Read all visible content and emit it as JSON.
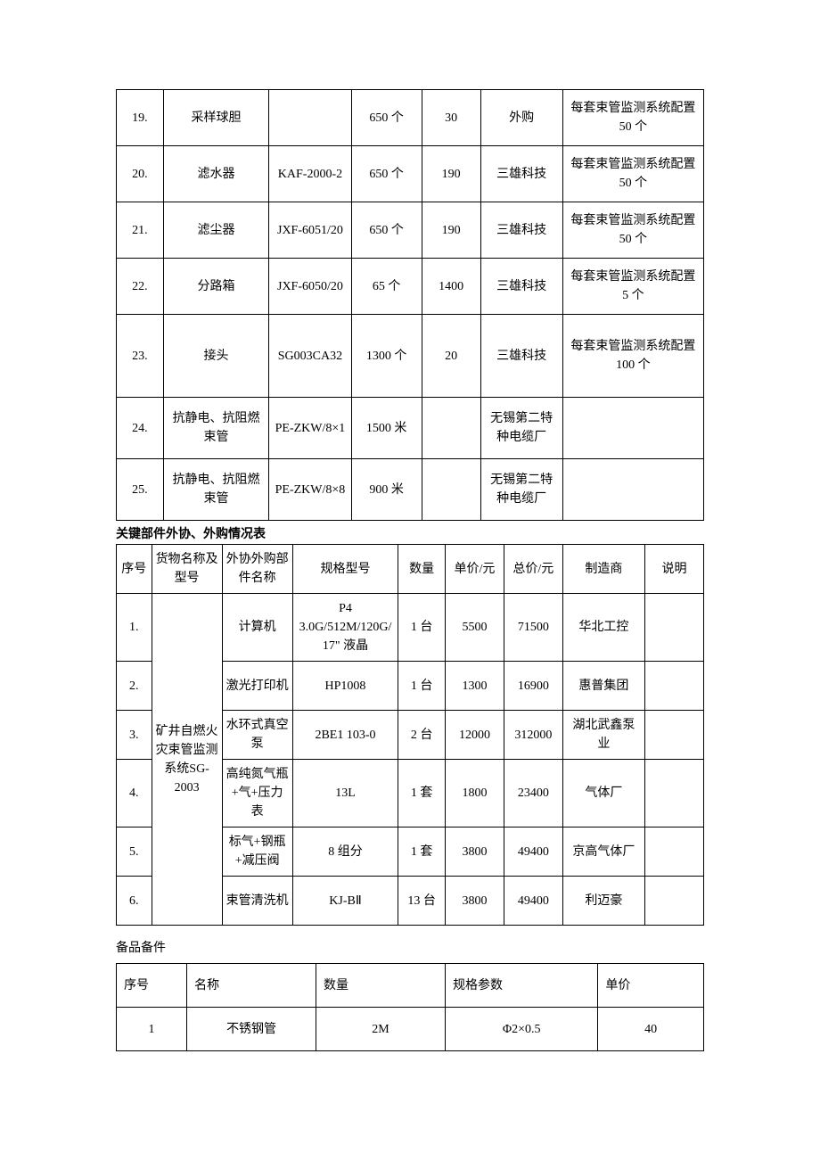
{
  "table1": {
    "rows": [
      {
        "no": "19.",
        "name": "采样球胆",
        "model": "",
        "qty": "650 个",
        "price": "30",
        "maker": "外购",
        "note": "每套束管监测系统配置 50 个"
      },
      {
        "no": "20.",
        "name": "滤水器",
        "model": "KAF-2000-2",
        "qty": "650 个",
        "price": "190",
        "maker": "三雄科技",
        "note": "每套束管监测系统配置 50 个"
      },
      {
        "no": "21.",
        "name": "滤尘器",
        "model": "JXF-6051/20",
        "qty": "650 个",
        "price": "190",
        "maker": "三雄科技",
        "note": "每套束管监测系统配置 50 个"
      },
      {
        "no": "22.",
        "name": "分路箱",
        "model": "JXF-6050/20",
        "qty": "65 个",
        "price": "1400",
        "maker": "三雄科技",
        "note": "每套束管监测系统配置 5 个"
      },
      {
        "no": "23.",
        "name": "接头",
        "model": "SG003CA32",
        "qty": "1300 个",
        "price": "20",
        "maker": "三雄科技",
        "note": "每套束管监测系统配置 100 个"
      },
      {
        "no": "24.",
        "name": "抗静电、抗阻燃束管",
        "model": "PE-ZKW/8×1",
        "qty": "1500 米",
        "price": "",
        "maker": "无锡第二特种电缆厂",
        "note": ""
      },
      {
        "no": "25.",
        "name": "抗静电、抗阻燃束管",
        "model": "PE-ZKW/8×8",
        "qty": "900 米",
        "price": "",
        "maker": "无锡第二特种电缆厂",
        "note": ""
      }
    ]
  },
  "section2_title": "关键部件外协、外购情况表",
  "table2": {
    "headers": [
      "序号",
      "货物名称及型号",
      "外协外购部件名称",
      "规格型号",
      "数量",
      "单价/元",
      "总价/元",
      "制造商",
      "说明"
    ],
    "merged_name": "矿井自燃火灾束管监测系统SG-2003",
    "rows": [
      {
        "no": "1.",
        "part": "计算机",
        "model": "P4 3.0G/512M/120G/17\" 液晶",
        "qty": "1 台",
        "unit": "5500",
        "total": "71500",
        "maker": "华北工控",
        "note": ""
      },
      {
        "no": "2.",
        "part": "激光打印机",
        "model": "HP1008",
        "qty": "1 台",
        "unit": "1300",
        "total": "16900",
        "maker": "惠普集团",
        "note": ""
      },
      {
        "no": "3.",
        "part": "水环式真空泵",
        "model": "2BE1 103-0",
        "qty": "2 台",
        "unit": "12000",
        "total": "312000",
        "maker": "湖北武鑫泵业",
        "note": ""
      },
      {
        "no": "4.",
        "part": "高纯氮气瓶+气+压力表",
        "model": "13L",
        "qty": "1 套",
        "unit": "1800",
        "total": "23400",
        "maker": "气体厂",
        "note": ""
      },
      {
        "no": "5.",
        "part": "标气+钢瓶+减压阀",
        "model": "8 组分",
        "qty": "1 套",
        "unit": "3800",
        "total": "49400",
        "maker": "京高气体厂",
        "note": ""
      },
      {
        "no": "6.",
        "part": "束管清洗机",
        "model": "KJ-BⅡ",
        "qty": "13 台",
        "unit": "3800",
        "total": "49400",
        "maker": "利迈豪",
        "note": ""
      }
    ]
  },
  "section3_title": "备品备件",
  "table3": {
    "headers": [
      "序号",
      "名称",
      "数量",
      "规格参数",
      "单价"
    ],
    "rows": [
      {
        "no": "1",
        "name": "不锈钢管",
        "qty": "2M",
        "spec": "Φ2×0.5",
        "price": "40"
      }
    ]
  }
}
